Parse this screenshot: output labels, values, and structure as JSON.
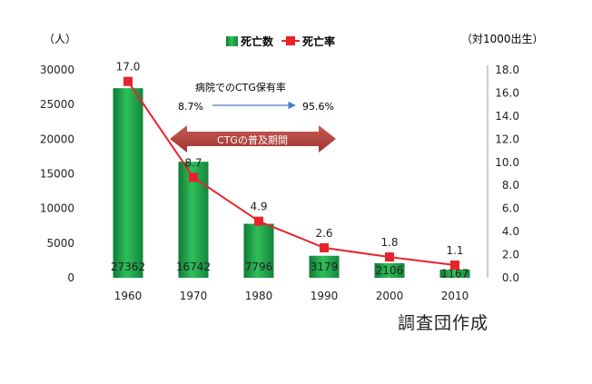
{
  "chart_data": {
    "type": "bar",
    "categories": [
      "1960",
      "1970",
      "1980",
      "1990",
      "2000",
      "2010"
    ],
    "series": [
      {
        "name": "死亡数",
        "chart_type": "bar",
        "axis": "left",
        "values": [
          27362,
          16742,
          7796,
          3179,
          2106,
          1167
        ],
        "labels": [
          "27362",
          "16742",
          "7796",
          "3179",
          "2106",
          "1167"
        ]
      },
      {
        "name": "死亡率",
        "chart_type": "line",
        "axis": "right",
        "values": [
          17.0,
          8.7,
          4.9,
          2.6,
          1.8,
          1.1
        ],
        "labels": [
          "17.0",
          "8.7",
          "4.9",
          "2.6",
          "1.8",
          "1.1"
        ]
      }
    ],
    "y_left": {
      "unit": "（人）",
      "min": 0,
      "max": 30000,
      "ticks": [
        "0",
        "5000",
        "10000",
        "15000",
        "20000",
        "25000",
        "30000"
      ]
    },
    "y_right": {
      "unit": "（対1000出生）",
      "min": 0,
      "max": 18,
      "ticks": [
        "0.0",
        "2.0",
        "4.0",
        "6.0",
        "8.0",
        "10.0",
        "12.0",
        "14.0",
        "16.0",
        "18.0"
      ]
    },
    "legend_position": "top-center",
    "colors": {
      "bar": "#20a84a",
      "bar_dark": "#12803a",
      "line": "#e8232a",
      "band": "#b8433f",
      "arrow": "#4a7cc4"
    },
    "annotations": {
      "ctg_title": "病院でのCTG保有率",
      "ctg_start": "8.7%",
      "ctg_end": "95.6%",
      "band_label": "CTGの普及期間"
    },
    "credit": "調査団作成"
  }
}
